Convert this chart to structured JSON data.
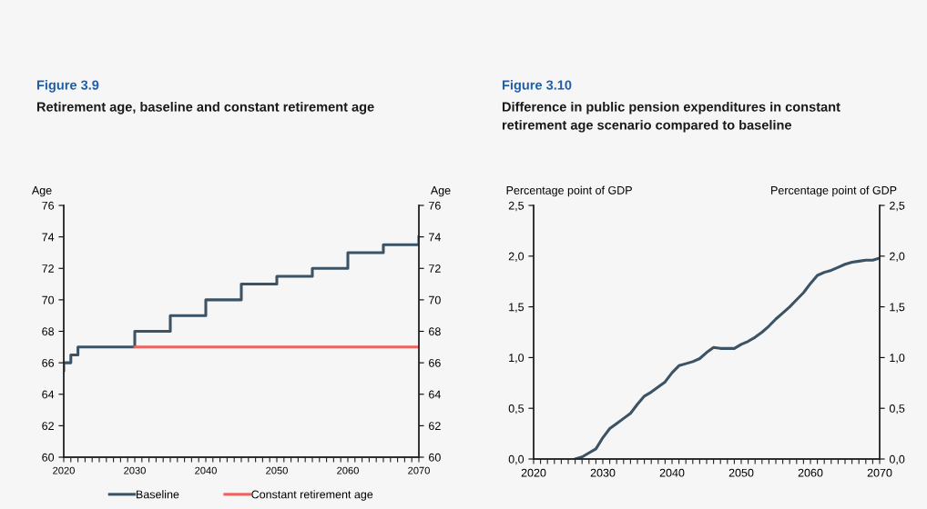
{
  "chart_data": [
    {
      "type": "line",
      "title": "Figure 3.9",
      "subtitle": "Retirement age, baseline and constant retirement age",
      "ylabel": "Age",
      "y2label": "Age",
      "series": [
        {
          "name": "Baseline",
          "type": "step",
          "color": "#3b5364",
          "x": [
            2020,
            2020,
            2021,
            2022,
            2030,
            2035,
            2040,
            2045,
            2050,
            2055,
            2060,
            2065,
            2070
          ],
          "values": [
            65.5,
            66,
            66.5,
            67,
            68,
            69,
            70,
            71,
            71.5,
            72,
            73,
            73.5,
            74
          ]
        },
        {
          "name": "Constant retirement age",
          "type": "line",
          "color": "#f0605d",
          "x": [
            2030,
            2070
          ],
          "values": [
            67,
            67
          ]
        }
      ],
      "xlim": [
        2020,
        2070
      ],
      "xticks": [
        2020,
        {
          "value": 2021,
          "label": null
        },
        {
          "value": 2022,
          "label": null
        },
        {
          "value": 2023,
          "label": null
        },
        {
          "value": 2024,
          "label": null
        },
        {
          "value": 2025,
          "label": null
        },
        {
          "value": 2026,
          "label": null
        },
        {
          "value": 2027,
          "label": null
        },
        {
          "value": 2028,
          "label": null
        },
        {
          "value": 2029,
          "label": null
        },
        2030,
        {
          "value": 2031,
          "label": null
        },
        {
          "value": 2032,
          "label": null
        },
        {
          "value": 2033,
          "label": null
        },
        {
          "value": 2034,
          "label": null
        },
        {
          "value": 2035,
          "label": null
        },
        {
          "value": 2036,
          "label": null
        },
        {
          "value": 2037,
          "label": null
        },
        {
          "value": 2038,
          "label": null
        },
        {
          "value": 2039,
          "label": null
        },
        2040,
        {
          "value": 2041,
          "label": null
        },
        {
          "value": 2042,
          "label": null
        },
        {
          "value": 2043,
          "label": null
        },
        {
          "value": 2044,
          "label": null
        },
        {
          "value": 2045,
          "label": null
        },
        {
          "value": 2046,
          "label": null
        },
        {
          "value": 2047,
          "label": null
        },
        {
          "value": 2048,
          "label": null
        },
        {
          "value": 2049,
          "label": null
        },
        2050,
        {
          "value": 2051,
          "label": null
        },
        {
          "value": 2052,
          "label": null
        },
        {
          "value": 2053,
          "label": null
        },
        {
          "value": 2054,
          "label": null
        },
        {
          "value": 2055,
          "label": null
        },
        {
          "value": 2056,
          "label": null
        },
        {
          "value": 2057,
          "label": null
        },
        {
          "value": 2058,
          "label": null
        },
        {
          "value": 2059,
          "label": null
        },
        2060,
        {
          "value": 2061,
          "label": null
        },
        {
          "value": 2062,
          "label": null
        },
        {
          "value": 2063,
          "label": null
        },
        {
          "value": 2064,
          "label": null
        },
        {
          "value": 2065,
          "label": null
        },
        {
          "value": 2066,
          "label": null
        },
        {
          "value": 2067,
          "label": null
        },
        {
          "value": 2068,
          "label": null
        },
        {
          "value": 2069,
          "label": null
        },
        2070
      ],
      "ylim": [
        60,
        76
      ],
      "yticks": [
        60,
        62,
        64,
        66,
        68,
        70,
        72,
        74,
        76
      ],
      "y2lim": [
        60,
        76
      ],
      "y2ticks": [
        60,
        62,
        64,
        66,
        68,
        70,
        72,
        74,
        76
      ],
      "legend": "bottom"
    },
    {
      "type": "line",
      "title": "Figure 3.10",
      "subtitle": "Difference in public pension expenditures in constant retirement age scenario compared to baseline",
      "ylabel": "Percentage point of GDP",
      "y2label": "Percentage point of GDP",
      "series": [
        {
          "color": "#3b5364",
          "x": [
            2026,
            2027,
            2028,
            2029,
            2030,
            2031,
            2032,
            2033,
            2034,
            2035,
            2036,
            2037,
            2038,
            2039,
            2040,
            2041,
            2042,
            2043,
            2044,
            2045,
            2046,
            2047,
            2048,
            2049,
            2050,
            2051,
            2052,
            2053,
            2054,
            2055,
            2056,
            2057,
            2058,
            2059,
            2060,
            2061,
            2062,
            2063,
            2064,
            2065,
            2066,
            2067,
            2068,
            2069,
            2070
          ],
          "values": [
            0,
            0.02,
            0.06,
            0.1,
            0.21,
            0.3,
            0.35,
            0.4,
            0.45,
            0.54,
            0.62,
            0.66,
            0.71,
            0.76,
            0.85,
            0.92,
            0.94,
            0.96,
            0.99,
            1.05,
            1.1,
            1.09,
            1.09,
            1.09,
            1.13,
            1.16,
            1.2,
            1.25,
            1.31,
            1.38,
            1.44,
            1.5,
            1.57,
            1.64,
            1.73,
            1.81,
            1.84,
            1.86,
            1.89,
            1.92,
            1.94,
            1.95,
            1.96,
            1.96,
            1.98
          ]
        }
      ],
      "xlim": [
        2020,
        2070
      ],
      "xticks": [
        2020,
        {
          "value": 2021,
          "label": null
        },
        {
          "value": 2022,
          "label": null
        },
        {
          "value": 2023,
          "label": null
        },
        {
          "value": 2024,
          "label": null
        },
        {
          "value": 2025,
          "label": null
        },
        {
          "value": 2026,
          "label": null
        },
        {
          "value": 2027,
          "label": null
        },
        {
          "value": 2028,
          "label": null
        },
        {
          "value": 2029,
          "label": null
        },
        2030,
        {
          "value": 2031,
          "label": null
        },
        {
          "value": 2032,
          "label": null
        },
        {
          "value": 2033,
          "label": null
        },
        {
          "value": 2034,
          "label": null
        },
        {
          "value": 2035,
          "label": null
        },
        {
          "value": 2036,
          "label": null
        },
        {
          "value": 2037,
          "label": null
        },
        {
          "value": 2038,
          "label": null
        },
        {
          "value": 2039,
          "label": null
        },
        2040,
        {
          "value": 2041,
          "label": null
        },
        {
          "value": 2042,
          "label": null
        },
        {
          "value": 2043,
          "label": null
        },
        {
          "value": 2044,
          "label": null
        },
        {
          "value": 2045,
          "label": null
        },
        {
          "value": 2046,
          "label": null
        },
        {
          "value": 2047,
          "label": null
        },
        {
          "value": 2048,
          "label": null
        },
        {
          "value": 2049,
          "label": null
        },
        2050,
        {
          "value": 2051,
          "label": null
        },
        {
          "value": 2052,
          "label": null
        },
        {
          "value": 2053,
          "label": null
        },
        {
          "value": 2054,
          "label": null
        },
        {
          "value": 2055,
          "label": null
        },
        {
          "value": 2056,
          "label": null
        },
        {
          "value": 2057,
          "label": null
        },
        {
          "value": 2058,
          "label": null
        },
        {
          "value": 2059,
          "label": null
        },
        2060,
        {
          "value": 2061,
          "label": null
        },
        {
          "value": 2062,
          "label": null
        },
        {
          "value": 2063,
          "label": null
        },
        {
          "value": 2064,
          "label": null
        },
        {
          "value": 2065,
          "label": null
        },
        {
          "value": 2066,
          "label": null
        },
        {
          "value": 2067,
          "label": null
        },
        {
          "value": 2068,
          "label": null
        },
        {
          "value": 2069,
          "label": null
        },
        2070
      ],
      "ylim": [
        0,
        2.5
      ],
      "yticks": [
        {
          "value": 0,
          "label": "0,0"
        },
        {
          "value": 0.5,
          "label": "0,5"
        },
        {
          "value": 1,
          "label": "1,0"
        },
        {
          "value": 1.5,
          "label": "1,5"
        },
        {
          "value": 2,
          "label": "2,0"
        },
        {
          "value": 2.5,
          "label": "2,5"
        }
      ],
      "y2lim": [
        0,
        2.5
      ],
      "y2ticks": [
        {
          "value": 0,
          "label": "0,0"
        },
        {
          "value": 0.5,
          "label": "0,5"
        },
        {
          "value": 1,
          "label": "1,0"
        },
        {
          "value": 1.5,
          "label": "1,5"
        },
        {
          "value": 2,
          "label": "2,0"
        },
        {
          "value": 2.5,
          "label": "2,5"
        }
      ]
    }
  ]
}
